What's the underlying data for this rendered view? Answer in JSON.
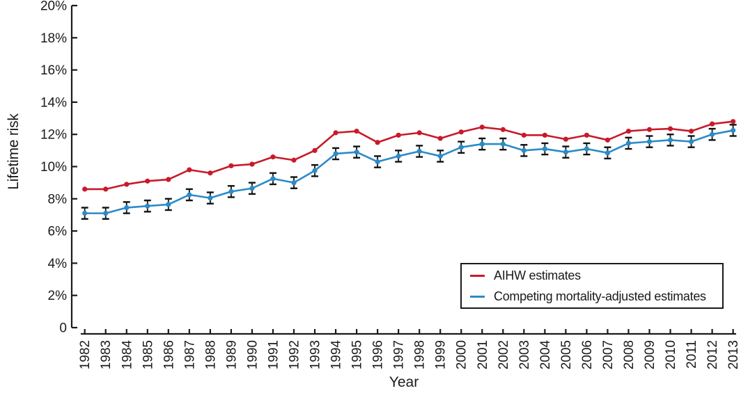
{
  "chart_data": {
    "type": "line",
    "title": "",
    "xlabel": "Year",
    "ylabel": "Lifetime risk",
    "x": [
      1982,
      1983,
      1984,
      1985,
      1986,
      1987,
      1988,
      1989,
      1990,
      1991,
      1992,
      1993,
      1994,
      1995,
      1996,
      1997,
      1998,
      1999,
      2000,
      2001,
      2002,
      2003,
      2004,
      2005,
      2006,
      2007,
      2008,
      2009,
      2010,
      2011,
      2012,
      2013
    ],
    "ylim": [
      0,
      20
    ],
    "ytick_step": 2,
    "ytick_suffix": "%",
    "zero_tick_label": "0",
    "grid": false,
    "legend_position": "lower-right",
    "axis_color": "#1a1a1a",
    "error_bar_color": "#111111",
    "series": [
      {
        "name": "AIHW estimates",
        "color": "#c81a2b",
        "marker": "circle",
        "values": [
          8.6,
          8.6,
          8.9,
          9.1,
          9.2,
          9.8,
          9.6,
          10.05,
          10.15,
          10.6,
          10.4,
          11.0,
          12.1,
          12.2,
          11.5,
          11.95,
          12.1,
          11.75,
          12.15,
          12.45,
          12.3,
          11.95,
          11.95,
          11.7,
          11.95,
          11.65,
          12.2,
          12.3,
          12.35,
          12.2,
          12.65,
          12.8
        ]
      },
      {
        "name": "Competing mortality-adjusted estimates",
        "color": "#2b8bc6",
        "marker": "circle",
        "error_half_width": 0.35,
        "values": [
          7.1,
          7.1,
          7.45,
          7.55,
          7.65,
          8.25,
          8.05,
          8.45,
          8.65,
          9.25,
          9.0,
          9.75,
          10.8,
          10.9,
          10.3,
          10.65,
          10.95,
          10.65,
          11.2,
          11.4,
          11.4,
          11.0,
          11.1,
          10.9,
          11.1,
          10.85,
          11.45,
          11.55,
          11.65,
          11.55,
          12.0,
          12.25
        ]
      }
    ]
  }
}
